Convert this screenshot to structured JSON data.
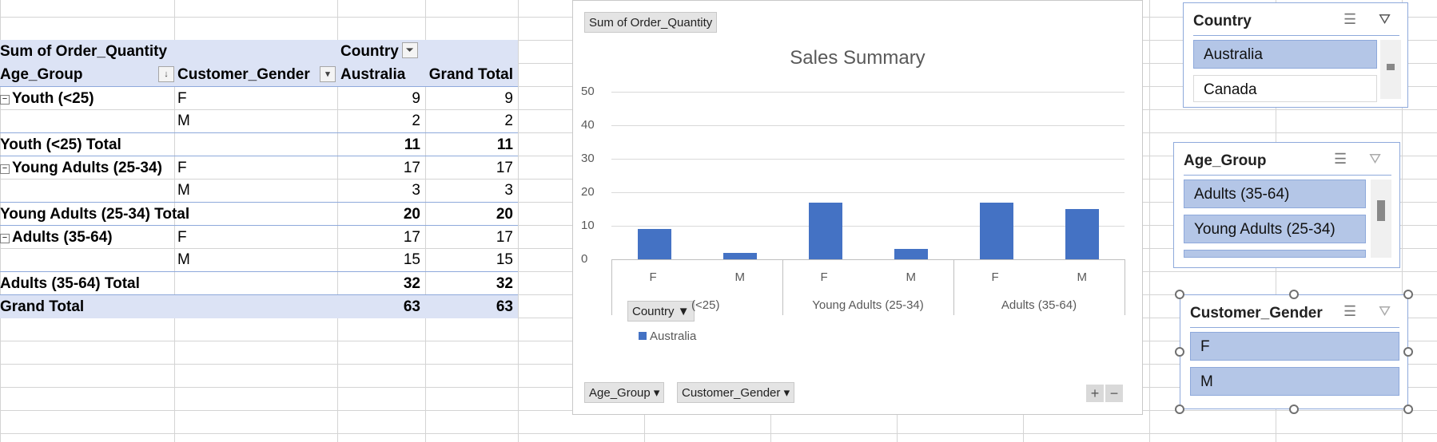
{
  "pivot": {
    "headers": {
      "measure": "Sum of Order_Quantity",
      "country": "Country",
      "age_group": "Age_Group",
      "gender": "Customer_Gender",
      "australia": "Australia",
      "grand_total": "Grand Total"
    },
    "rows": [
      {
        "label": "Youth (<25)",
        "gender": "F",
        "aus": "9",
        "total": "9"
      },
      {
        "label": "",
        "gender": "M",
        "aus": "2",
        "total": "2"
      },
      {
        "label": "Youth (<25) Total",
        "gender": "",
        "aus": "11",
        "total": "11"
      },
      {
        "label": "Young Adults (25-34)",
        "gender": "F",
        "aus": "17",
        "total": "17"
      },
      {
        "label": "",
        "gender": "M",
        "aus": "3",
        "total": "3"
      },
      {
        "label": "Young Adults (25-34) Total",
        "gender": "",
        "aus": "20",
        "total": "20"
      },
      {
        "label": "Adults (35-64)",
        "gender": "F",
        "aus": "17",
        "total": "17"
      },
      {
        "label": "",
        "gender": "M",
        "aus": "15",
        "total": "15"
      },
      {
        "label": "Adults (35-64) Total",
        "gender": "",
        "aus": "32",
        "total": "32"
      },
      {
        "label": "Grand Total",
        "gender": "",
        "aus": "63",
        "total": "63"
      }
    ]
  },
  "chart": {
    "field_measure": "Sum of Order_Quantity",
    "field_country": "Country",
    "field_age": "Age_Group",
    "field_gender": "Customer_Gender",
    "zoom_plus": "+",
    "zoom_minus": "−",
    "bar_color": "#4472c4"
  },
  "chart_data": {
    "type": "bar",
    "title": "Sales Summary",
    "categories": [
      {
        "group": "Youth (<25)",
        "sub": "F"
      },
      {
        "group": "Youth (<25)",
        "sub": "M"
      },
      {
        "group": "Young Adults (25-34)",
        "sub": "F"
      },
      {
        "group": "Young Adults (25-34)",
        "sub": "M"
      },
      {
        "group": "Adults (35-64)",
        "sub": "F"
      },
      {
        "group": "Adults (35-64)",
        "sub": "M"
      }
    ],
    "group_labels": [
      "(<25)",
      "Young Adults (25-34)",
      "Adults (35-64)"
    ],
    "series": [
      {
        "name": "Australia",
        "values": [
          9,
          2,
          17,
          3,
          17,
          15
        ]
      }
    ],
    "ylim": [
      0,
      50
    ],
    "yticks": [
      "0",
      "10",
      "20",
      "30",
      "40",
      "50"
    ],
    "grid": true,
    "legend": "bottom-left"
  },
  "slicers": {
    "country": {
      "title": "Country",
      "items": [
        "Australia",
        "Canada"
      ]
    },
    "age_group": {
      "title": "Age_Group",
      "items": [
        "Adults (35-64)",
        "Young Adults (25-34)"
      ]
    },
    "gender": {
      "title": "Customer_Gender",
      "items": [
        "F",
        "M"
      ]
    }
  }
}
